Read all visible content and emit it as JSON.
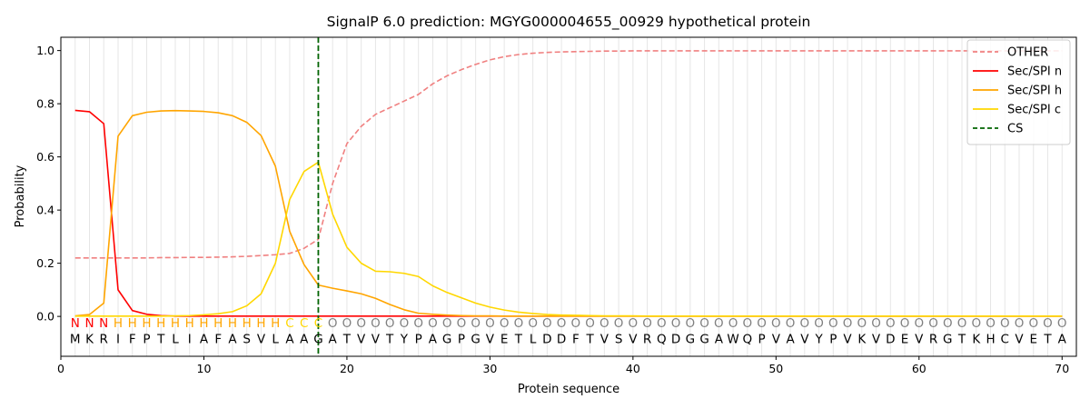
{
  "chart_data": {
    "type": "line",
    "title": "SignalP 6.0 prediction: MGYG000004655_00929 hypothetical protein",
    "xlabel": "Protein sequence",
    "ylabel": "Probability",
    "xlim": [
      0,
      71
    ],
    "ylim": [
      -0.15,
      1.05
    ],
    "grid": "vertical lines at each residue position",
    "legend_position": "top-right",
    "x_ticks": [
      "0",
      "10",
      "20",
      "30",
      "40",
      "50",
      "60",
      "70"
    ],
    "y_ticks": [
      "0.0",
      "0.2",
      "0.4",
      "0.6",
      "0.8",
      "1.0"
    ],
    "sequence": [
      "M",
      "K",
      "R",
      "I",
      "F",
      "P",
      "T",
      "L",
      "I",
      "A",
      "F",
      "A",
      "S",
      "V",
      "L",
      "A",
      "A",
      "G",
      "A",
      "T",
      "V",
      "V",
      "T",
      "Y",
      "P",
      "A",
      "G",
      "P",
      "G",
      "V",
      "E",
      "T",
      "L",
      "D",
      "D",
      "F",
      "T",
      "V",
      "S",
      "V",
      "R",
      "Q",
      "D",
      "G",
      "G",
      "A",
      "W",
      "Q",
      "P",
      "V",
      "A",
      "V",
      "Y",
      "P",
      "V",
      "K",
      "V",
      "D",
      "E",
      "V",
      "R",
      "G",
      "T",
      "K",
      "H",
      "C",
      "V",
      "E",
      "T",
      "A"
    ],
    "predicted_labels": [
      "N",
      "N",
      "N",
      "H",
      "H",
      "H",
      "H",
      "H",
      "H",
      "H",
      "H",
      "H",
      "H",
      "H",
      "H",
      "C",
      "C",
      "C",
      "O",
      "O",
      "O",
      "O",
      "O",
      "O",
      "O",
      "O",
      "O",
      "O",
      "O",
      "O",
      "O",
      "O",
      "O",
      "O",
      "O",
      "O",
      "O",
      "O",
      "O",
      "O",
      "O",
      "O",
      "O",
      "O",
      "O",
      "O",
      "O",
      "O",
      "O",
      "O",
      "O",
      "O",
      "O",
      "O",
      "O",
      "O",
      "O",
      "O",
      "O",
      "O",
      "O",
      "O",
      "O",
      "O",
      "O",
      "O",
      "O",
      "O",
      "O",
      "O"
    ],
    "label_colors": {
      "N": "#ff0000",
      "H": "#ffa500",
      "C": "#ffd700",
      "O": "#808080"
    },
    "cleavage_site": 18,
    "series": [
      {
        "name": "OTHER",
        "color": "#f08080",
        "dashed": true,
        "values": [
          0.22,
          0.22,
          0.22,
          0.22,
          0.22,
          0.22,
          0.221,
          0.221,
          0.222,
          0.222,
          0.223,
          0.224,
          0.226,
          0.229,
          0.232,
          0.237,
          0.256,
          0.29,
          0.5,
          0.65,
          0.715,
          0.76,
          0.785,
          0.81,
          0.835,
          0.875,
          0.905,
          0.928,
          0.948,
          0.965,
          0.977,
          0.985,
          0.99,
          0.993,
          0.995,
          0.996,
          0.997,
          0.998,
          0.998,
          0.999,
          0.999,
          0.999,
          0.999,
          0.999,
          0.999,
          0.999,
          0.999,
          0.999,
          0.999,
          0.999,
          0.999,
          0.999,
          0.999,
          0.999,
          0.999,
          0.999,
          0.999,
          0.999,
          0.999,
          0.999,
          0.999,
          0.999,
          0.999,
          0.999,
          0.999,
          0.999,
          0.999,
          0.999,
          0.999,
          0.999
        ]
      },
      {
        "name": "Sec/SPI n",
        "color": "#ff0000",
        "dashed": false,
        "values": [
          0.775,
          0.77,
          0.725,
          0.1,
          0.022,
          0.008,
          0.003,
          0.001,
          0.001,
          0.001,
          0.001,
          0.001,
          0.001,
          0.001,
          0.001,
          0.001,
          0.001,
          0.001,
          0.001,
          0.001,
          0.001,
          0.001,
          0.001,
          0.001,
          0.001,
          0.001,
          0.001,
          0.001,
          0.001,
          0.001,
          0.001,
          0.001,
          0.001,
          0.001,
          0.001,
          0.001,
          0.001,
          0.001,
          0.001,
          0.001,
          0.001,
          0.001,
          0.001,
          0.001,
          0.001,
          0.001,
          0.001,
          0.001,
          0.001,
          0.001,
          0.001,
          0.001,
          0.001,
          0.001,
          0.001,
          0.001,
          0.001,
          0.001,
          0.001,
          0.001,
          0.001,
          0.001,
          0.001,
          0.001,
          0.001,
          0.001,
          0.001,
          0.001,
          0.001,
          0.001
        ]
      },
      {
        "name": "Sec/SPI h",
        "color": "#ffa500",
        "dashed": false,
        "values": [
          0.002,
          0.007,
          0.05,
          0.678,
          0.755,
          0.768,
          0.773,
          0.774,
          0.773,
          0.771,
          0.766,
          0.755,
          0.73,
          0.68,
          0.565,
          0.32,
          0.195,
          0.118,
          0.106,
          0.096,
          0.085,
          0.068,
          0.045,
          0.025,
          0.012,
          0.008,
          0.005,
          0.003,
          0.002,
          0.002,
          0.001,
          0.001,
          0.001,
          0.001,
          0.001,
          0.001,
          0.001,
          0.001,
          0.001,
          0.001,
          0.001,
          0.001,
          0.001,
          0.001,
          0.001,
          0.001,
          0.001,
          0.001,
          0.001,
          0.001,
          0.001,
          0.001,
          0.001,
          0.001,
          0.001,
          0.001,
          0.001,
          0.001,
          0.001,
          0.001,
          0.001,
          0.001,
          0.001,
          0.001,
          0.001,
          0.001,
          0.001,
          0.001,
          0.001,
          0.001
        ]
      },
      {
        "name": "Sec/SPI c",
        "color": "#ffd700",
        "dashed": false,
        "values": [
          0.001,
          0.001,
          0.001,
          0.001,
          0.001,
          0.001,
          0.001,
          0.002,
          0.003,
          0.006,
          0.01,
          0.018,
          0.04,
          0.085,
          0.2,
          0.44,
          0.545,
          0.58,
          0.385,
          0.26,
          0.2,
          0.17,
          0.168,
          0.162,
          0.15,
          0.115,
          0.09,
          0.07,
          0.05,
          0.035,
          0.024,
          0.016,
          0.011,
          0.007,
          0.005,
          0.004,
          0.003,
          0.002,
          0.002,
          0.002,
          0.001,
          0.001,
          0.001,
          0.001,
          0.001,
          0.001,
          0.001,
          0.001,
          0.001,
          0.001,
          0.001,
          0.001,
          0.001,
          0.001,
          0.001,
          0.001,
          0.001,
          0.001,
          0.001,
          0.001,
          0.001,
          0.001,
          0.001,
          0.001,
          0.001,
          0.001,
          0.001,
          0.001,
          0.001,
          0.001
        ]
      }
    ],
    "legend": [
      {
        "label": "OTHER",
        "color": "#f08080",
        "dashed": true
      },
      {
        "label": "Sec/SPI n",
        "color": "#ff0000",
        "dashed": false
      },
      {
        "label": "Sec/SPI h",
        "color": "#ffa500",
        "dashed": false
      },
      {
        "label": "Sec/SPI c",
        "color": "#ffd700",
        "dashed": false
      },
      {
        "label": "CS",
        "color": "#006400",
        "dashed": true
      }
    ]
  }
}
